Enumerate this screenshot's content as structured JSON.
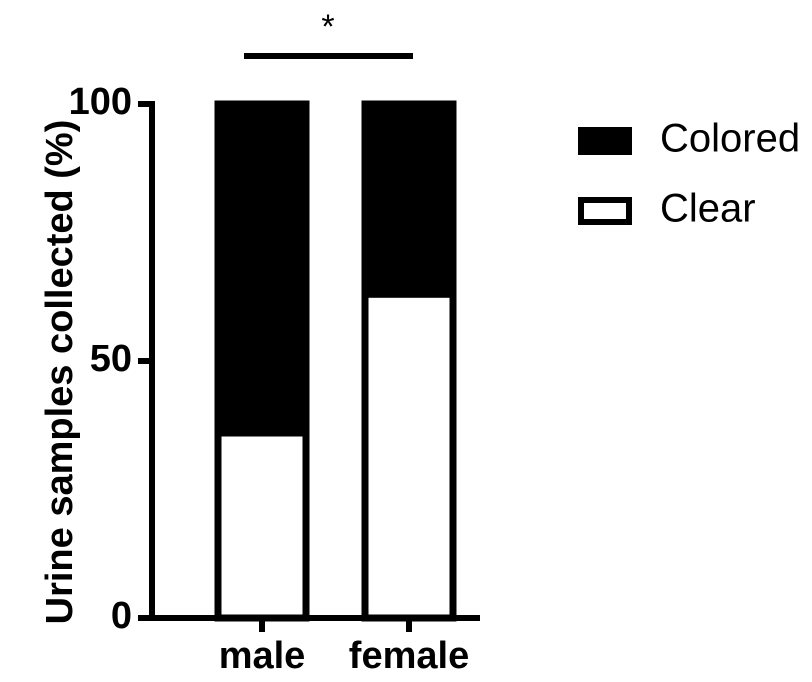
{
  "chart_data": {
    "type": "bar",
    "stacked": true,
    "categories": [
      "male",
      "female"
    ],
    "series": [
      {
        "name": "Clear",
        "values": [
          36,
          63
        ],
        "color": "#ffffff"
      },
      {
        "name": "Colored",
        "values": [
          64,
          37
        ],
        "color": "#000000"
      }
    ],
    "ylabel": "Urine samples collected (%)",
    "ylim": [
      0,
      100
    ],
    "yticks": [
      0,
      50,
      100
    ],
    "legend": "right",
    "grid": false,
    "annotation": {
      "text": "*",
      "between": [
        "male",
        "female"
      ]
    }
  }
}
